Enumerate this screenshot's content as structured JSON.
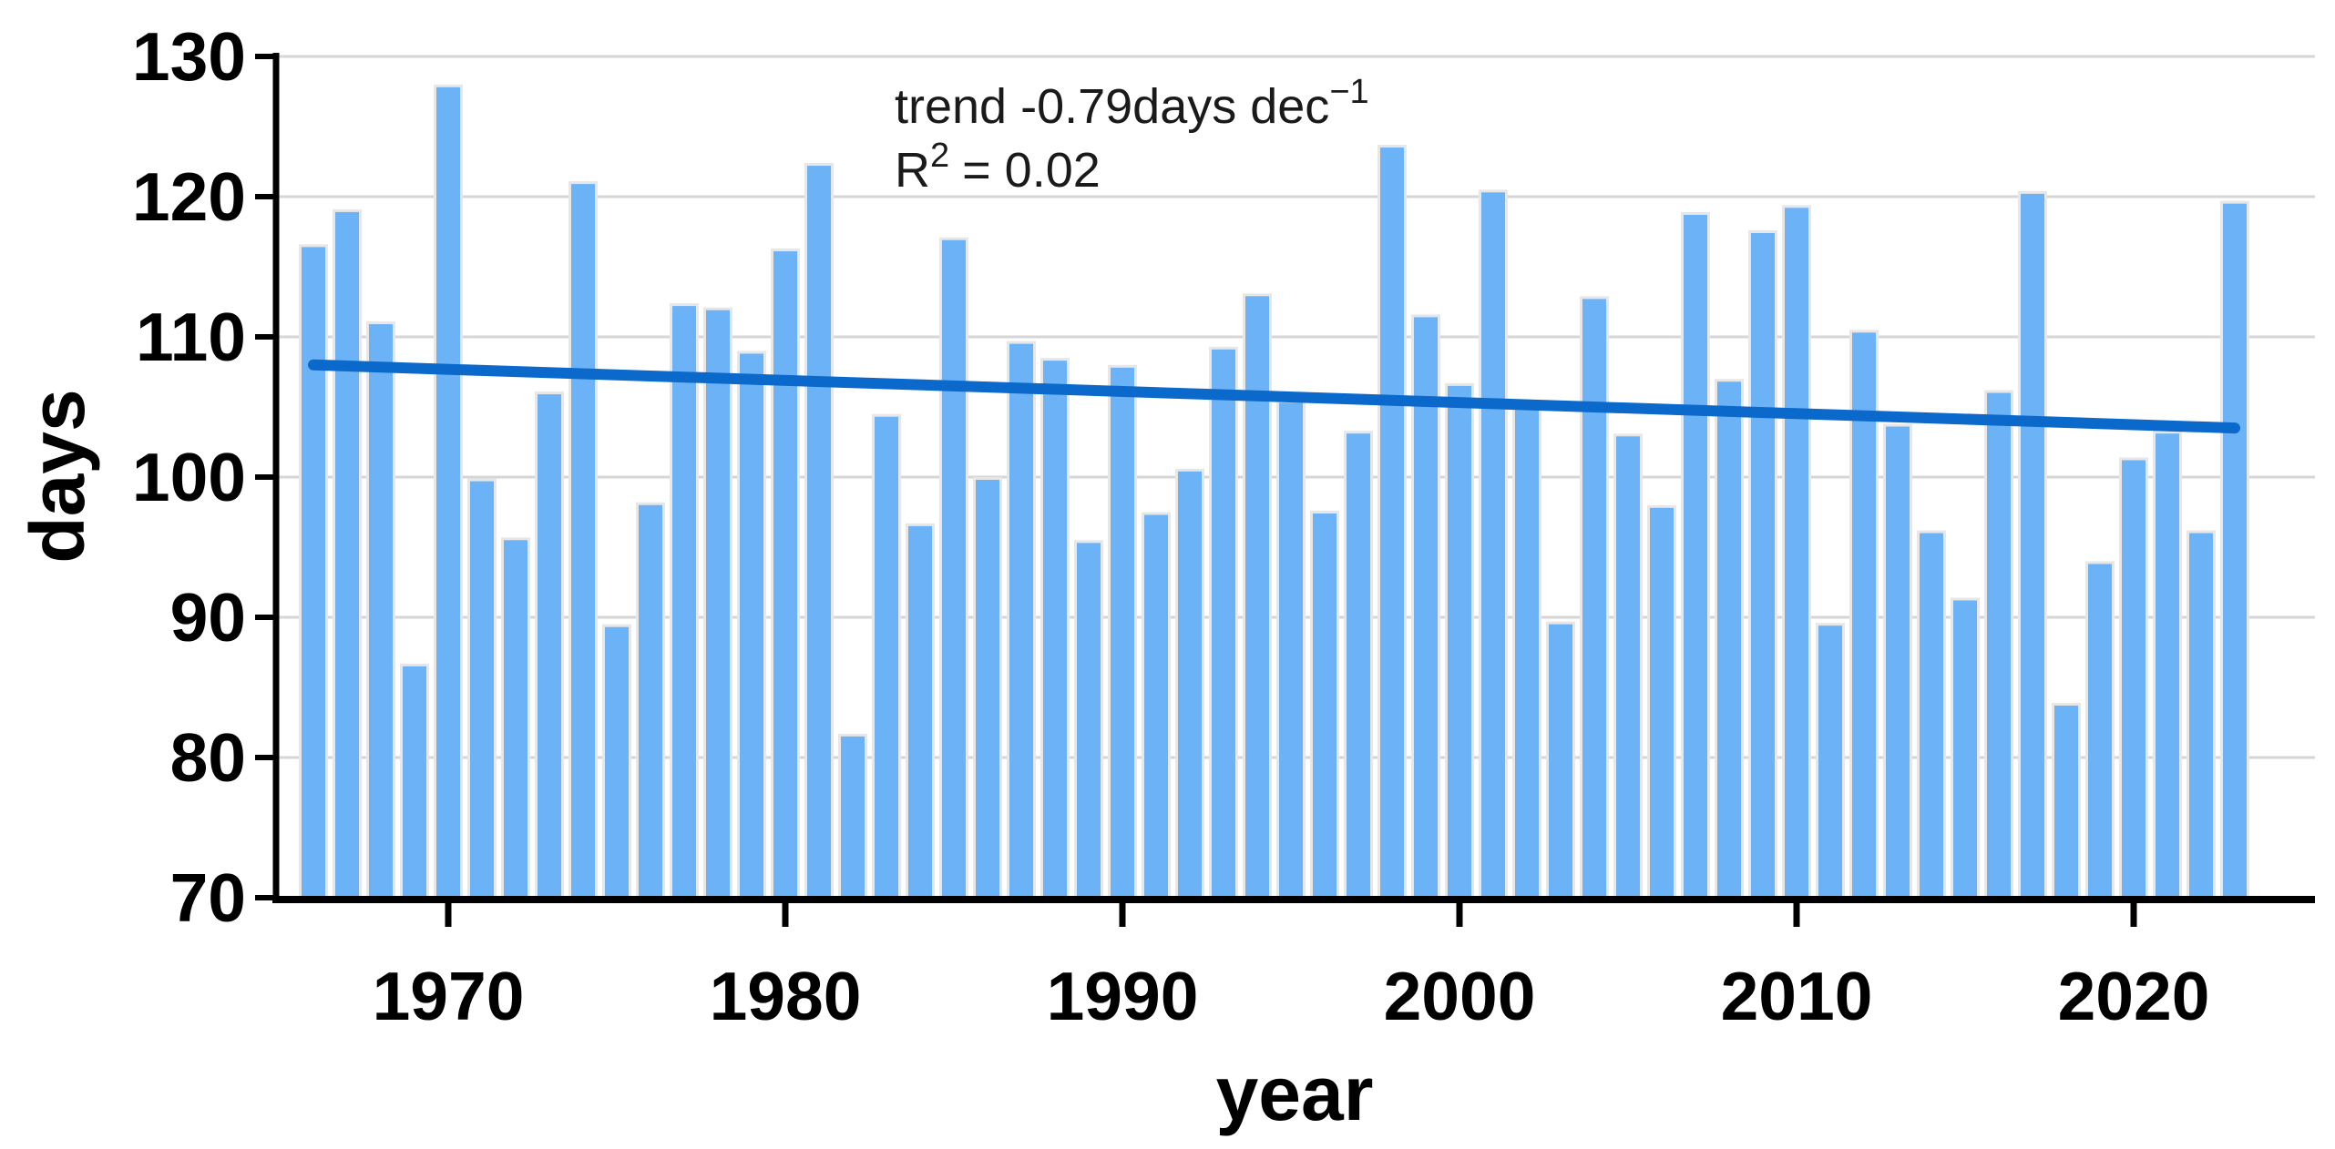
{
  "chart_data": {
    "type": "bar",
    "title": "",
    "xlabel": "year",
    "ylabel": "days",
    "categories": [
      1966,
      1967,
      1968,
      1969,
      1970,
      1971,
      1972,
      1973,
      1974,
      1975,
      1976,
      1977,
      1978,
      1979,
      1980,
      1981,
      1982,
      1983,
      1984,
      1985,
      1986,
      1987,
      1988,
      1989,
      1990,
      1991,
      1992,
      1993,
      1994,
      1995,
      1996,
      1997,
      1998,
      1999,
      2000,
      2001,
      2002,
      2003,
      2004,
      2005,
      2006,
      2007,
      2008,
      2009,
      2010,
      2011,
      2012,
      2013,
      2014,
      2015,
      2016,
      2017,
      2018,
      2019,
      2020,
      2021,
      2022,
      2023
    ],
    "values": [
      116.5,
      119.0,
      111.0,
      86.6,
      127.9,
      99.8,
      95.6,
      106.0,
      121.0,
      89.4,
      98.1,
      112.3,
      112.0,
      108.9,
      116.2,
      122.3,
      81.6,
      104.4,
      96.6,
      117.0,
      99.9,
      109.6,
      108.4,
      95.4,
      107.9,
      97.4,
      100.5,
      109.2,
      113.0,
      105.4,
      97.5,
      103.2,
      123.6,
      111.5,
      106.6,
      120.4,
      105.2,
      89.6,
      112.8,
      103.0,
      97.9,
      118.8,
      106.9,
      117.5,
      119.3,
      89.5,
      110.4,
      103.7,
      96.1,
      91.3,
      106.1,
      120.3,
      83.8,
      93.9,
      101.3,
      103.2,
      96.1,
      119.6
    ],
    "ylim": [
      70,
      130
    ],
    "y_ticks": [
      70,
      80,
      90,
      100,
      110,
      120,
      130
    ],
    "x_ticks": [
      1970,
      1980,
      1990,
      2000,
      2010,
      2020
    ],
    "grid": "horizontal-gridlines-on",
    "legend": "none",
    "annotation_lines": [
      "trend -0.79days dec⁻¹",
      "R² = 0.02"
    ],
    "trend_line": {
      "start_year": 1966,
      "end_year": 2023,
      "start_value": 108.0,
      "end_value": 103.5,
      "slope_label": "-0.79 days per decade",
      "r_squared": 0.02
    },
    "colors": {
      "bar_fill": "#6CB2F6",
      "bar_stroke": "#E7E7E7",
      "trend": "#0B69CB",
      "gridline": "#D6D6D6",
      "axis": "#000000",
      "background": "#FFFFFF"
    }
  },
  "labels": {
    "y_title": "days",
    "x_title": "year"
  },
  "annotation": {
    "line1_main": "trend -0.79days dec",
    "line1_sup": "−1",
    "line2_base": "R",
    "line2_sup": "2",
    "line2_rest": "= 0.02"
  }
}
